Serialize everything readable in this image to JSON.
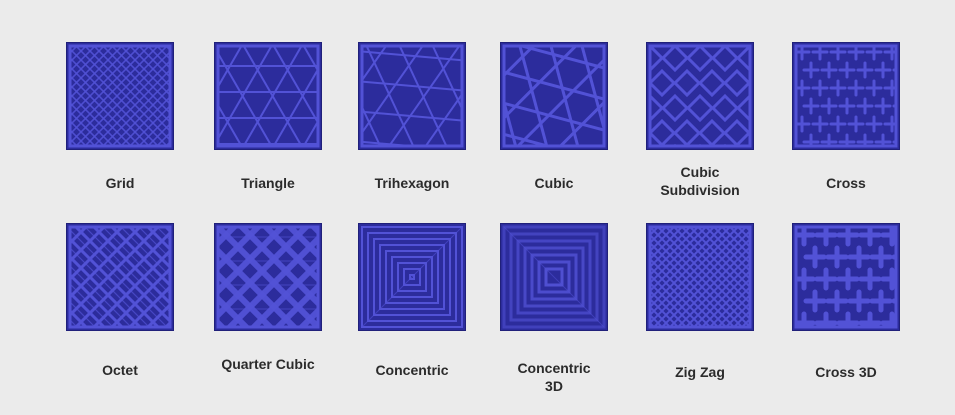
{
  "background_color": "#ebebeb",
  "tile_color": "#2c2c9c",
  "line_color": "#5252d6",
  "patterns": [
    {
      "id": "grid",
      "label": "Grid",
      "icon": "grid-pattern"
    },
    {
      "id": "triangle",
      "label": "Triangle",
      "icon": "triangle-pattern"
    },
    {
      "id": "trihexagon",
      "label": "Trihexagon",
      "icon": "trihexagon-pattern"
    },
    {
      "id": "cubic",
      "label": "Cubic",
      "icon": "cubic-pattern"
    },
    {
      "id": "cubic-subdivision",
      "label": "Cubic\nSubdivision",
      "icon": "cubic-subdivision-pattern"
    },
    {
      "id": "cross",
      "label": "Cross",
      "icon": "cross-pattern"
    },
    {
      "id": "octet",
      "label": "Octet",
      "icon": "octet-pattern"
    },
    {
      "id": "quarter-cubic",
      "label": "Quarter Cubic",
      "icon": "quarter-cubic-pattern"
    },
    {
      "id": "concentric",
      "label": "Concentric",
      "icon": "concentric-pattern"
    },
    {
      "id": "concentric-3d",
      "label": "Concentric\n3D",
      "icon": "concentric-3d-pattern"
    },
    {
      "id": "zig-zag",
      "label": "Zig Zag",
      "icon": "zig-zag-pattern"
    },
    {
      "id": "cross-3d",
      "label": "Cross 3D",
      "icon": "cross-3d-pattern"
    }
  ]
}
